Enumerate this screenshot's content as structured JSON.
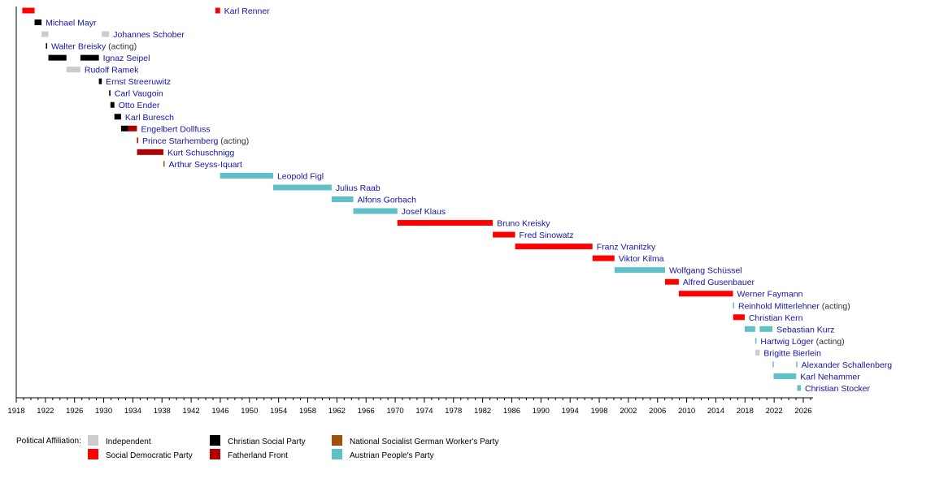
{
  "chart_data": {
    "type": "timeline",
    "xlim": [
      "1918-01-01",
      "2026-12-31"
    ],
    "x_tick_labels": [
      "1918",
      "1922",
      "1926",
      "1930",
      "1934",
      "1938",
      "1942",
      "1946",
      "1950",
      "1954",
      "1958",
      "1962",
      "1966",
      "1970",
      "1974",
      "1978",
      "1982",
      "1986",
      "1990",
      "1994",
      "1998",
      "2002",
      "2006",
      "2010",
      "2014",
      "2018",
      "2022",
      "2026"
    ],
    "legend_title": "Political Affiliation:",
    "parties": {
      "ind": {
        "name": "Independent",
        "color": "#cccccc"
      },
      "spo": {
        "name": "Social Democratic Party",
        "color": "#ff0000"
      },
      "cs": {
        "name": "Christian Social Party",
        "color": "#000000"
      },
      "vf": {
        "name": "Fatherland Front",
        "color": "#b00000"
      },
      "ns": {
        "name": "National Socialist German Worker's Party",
        "color": "#a0520a"
      },
      "ovp": {
        "name": "Austrian People's Party",
        "color": "#5fc0c8"
      }
    },
    "legend_order": [
      "ind",
      "spo",
      "cs",
      "vf",
      "ns",
      "ovp"
    ],
    "rows": [
      {
        "name": "Karl Renner",
        "note": "",
        "terms": [
          [
            "1918-10-30",
            "1920-07-07",
            "spo"
          ],
          [
            "1945-04-27",
            "1945-12-20",
            "spo"
          ]
        ]
      },
      {
        "name": "Michael Mayr",
        "note": "",
        "terms": [
          [
            "1920-07-07",
            "1921-06-21",
            "cs"
          ]
        ]
      },
      {
        "name": "Johannes Schober",
        "note": "",
        "terms": [
          [
            "1921-06-21",
            "1922-05-31",
            "ind"
          ],
          [
            "1929-09-26",
            "1930-09-30",
            "ind"
          ]
        ]
      },
      {
        "name": "Walter Breisky",
        "note": "(acting)",
        "terms": [
          [
            "1922-01-26",
            "1922-01-27",
            "cs"
          ]
        ]
      },
      {
        "name": "Ignaz Seipel",
        "note": "",
        "terms": [
          [
            "1922-05-31",
            "1924-11-20",
            "cs"
          ],
          [
            "1926-10-20",
            "1929-05-04",
            "cs"
          ]
        ]
      },
      {
        "name": "Rudolf Ramek",
        "note": "",
        "terms": [
          [
            "1924-11-20",
            "1926-10-20",
            "ind"
          ]
        ]
      },
      {
        "name": "Ernst Streeruwitz",
        "note": "",
        "terms": [
          [
            "1929-05-04",
            "1929-09-26",
            "cs"
          ]
        ]
      },
      {
        "name": "Carl Vaugoin",
        "note": "",
        "terms": [
          [
            "1930-09-30",
            "1930-12-04",
            "cs"
          ]
        ]
      },
      {
        "name": "Otto Ender",
        "note": "",
        "terms": [
          [
            "1930-12-04",
            "1931-06-20",
            "cs"
          ]
        ]
      },
      {
        "name": "Karl Buresch",
        "note": "",
        "terms": [
          [
            "1931-06-20",
            "1932-05-20",
            "cs"
          ]
        ]
      },
      {
        "name": "Engelbert Dollfuss",
        "note": "",
        "terms": [
          [
            "1932-05-20",
            "1933-05-20",
            "cs"
          ],
          [
            "1933-05-20",
            "1934-07-25",
            "vf"
          ]
        ]
      },
      {
        "name": "Prince Starhemberg",
        "note": "(acting)",
        "terms": [
          [
            "1934-07-25",
            "1934-07-29",
            "vf"
          ]
        ]
      },
      {
        "name": "Kurt Schuschnigg",
        "note": "",
        "terms": [
          [
            "1934-07-29",
            "1938-03-11",
            "vf"
          ]
        ]
      },
      {
        "name": "Arthur Seyss-Iquart",
        "note": "",
        "terms": [
          [
            "1938-03-11",
            "1938-03-13",
            "ns"
          ]
        ]
      },
      {
        "name": "Leopold Figl",
        "note": "",
        "terms": [
          [
            "1945-12-20",
            "1953-04-02",
            "ovp"
          ]
        ]
      },
      {
        "name": "Julius Raab",
        "note": "",
        "terms": [
          [
            "1953-04-02",
            "1961-04-11",
            "ovp"
          ]
        ]
      },
      {
        "name": "Alfons Gorbach",
        "note": "",
        "terms": [
          [
            "1961-04-11",
            "1964-04-02",
            "ovp"
          ]
        ]
      },
      {
        "name": "Josef Klaus",
        "note": "",
        "terms": [
          [
            "1964-04-02",
            "1970-04-21",
            "ovp"
          ]
        ]
      },
      {
        "name": "Bruno Kreisky",
        "note": "",
        "terms": [
          [
            "1970-04-21",
            "1983-05-24",
            "spo"
          ]
        ]
      },
      {
        "name": "Fred Sinowatz",
        "note": "",
        "terms": [
          [
            "1983-05-24",
            "1986-06-16",
            "spo"
          ]
        ]
      },
      {
        "name": "Franz Vranitzky",
        "note": "",
        "terms": [
          [
            "1986-06-16",
            "1997-01-28",
            "spo"
          ]
        ]
      },
      {
        "name": "Viktor Kilma",
        "note": "",
        "terms": [
          [
            "1997-01-28",
            "2000-02-04",
            "spo"
          ]
        ]
      },
      {
        "name": "Wolfgang Schüssel",
        "note": "",
        "terms": [
          [
            "2000-02-04",
            "2007-01-11",
            "ovp"
          ]
        ]
      },
      {
        "name": "Alfred Gusenbauer",
        "note": "",
        "terms": [
          [
            "2007-01-11",
            "2008-12-02",
            "spo"
          ]
        ]
      },
      {
        "name": "Werner Faymann",
        "note": "",
        "terms": [
          [
            "2008-12-02",
            "2016-05-09",
            "spo"
          ]
        ]
      },
      {
        "name": "Reinhold Mitterlehner",
        "note": "(acting)",
        "terms": [
          [
            "2016-05-09",
            "2016-05-17",
            "ovp"
          ]
        ]
      },
      {
        "name": "Christian Kern",
        "note": "",
        "terms": [
          [
            "2016-05-17",
            "2017-12-18",
            "spo"
          ]
        ]
      },
      {
        "name": "Sebastian Kurz",
        "note": "",
        "terms": [
          [
            "2017-12-18",
            "2019-05-28",
            "ovp"
          ],
          [
            "2020-01-07",
            "2021-10-11",
            "ovp"
          ]
        ]
      },
      {
        "name": "Hartwig Löger",
        "note": "(acting)",
        "terms": [
          [
            "2019-05-28",
            "2019-06-03",
            "ovp"
          ]
        ]
      },
      {
        "name": "Brigitte Bierlein",
        "note": "",
        "terms": [
          [
            "2019-06-03",
            "2020-01-07",
            "ind"
          ]
        ]
      },
      {
        "name": "Alexander Schallenberg",
        "note": "",
        "terms": [
          [
            "2021-10-11",
            "2021-12-06",
            "ovp"
          ],
          [
            "2025-01-06",
            "2025-03-03",
            "ovp"
          ]
        ]
      },
      {
        "name": "Karl Nehammer",
        "note": "",
        "terms": [
          [
            "2021-12-06",
            "2025-01-10",
            "ovp"
          ]
        ]
      },
      {
        "name": "Christian Stocker",
        "note": "",
        "terms": [
          [
            "2025-03-03",
            "2025-09-01",
            "ovp"
          ]
        ]
      }
    ]
  }
}
